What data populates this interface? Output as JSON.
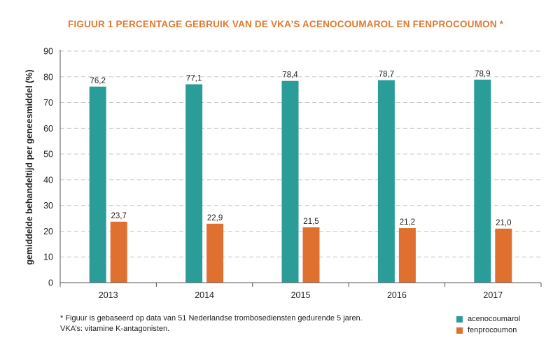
{
  "title": "FIGUUR 1  PERCENTAGE GEBRUIK VAN DE VKA’S ACENOCOUMAROL EN FENPROCOUMON *",
  "footnotes": [
    "* Figuur is gebaseerd op data van 51 Nederlandse trombosediensten gedurende 5 jaren.",
    "VKA’s: vitamine K-antagonisten."
  ],
  "chart_data": {
    "type": "bar",
    "title": "FIGUUR 1  PERCENTAGE GEBRUIK VAN DE VKA’S ACENOCOUMAROL EN FENPROCOUMON *",
    "xlabel": "",
    "ylabel": "gemiddelde behandeltijd per geneesmiddel (%)",
    "categories": [
      "2013",
      "2014",
      "2015",
      "2016",
      "2017"
    ],
    "ylim": [
      0,
      90
    ],
    "yticks": [
      0,
      10,
      20,
      30,
      40,
      50,
      60,
      70,
      80,
      90
    ],
    "grid": true,
    "legend": "bottom-right",
    "series": [
      {
        "name": "acenocoumarol",
        "color": "#2a9d99",
        "values": [
          76.2,
          77.1,
          78.4,
          78.7,
          78.9
        ],
        "labels": [
          "76,2",
          "77,1",
          "78,4",
          "78,7",
          "78,9"
        ]
      },
      {
        "name": "fenprocoumon",
        "color": "#e07030",
        "values": [
          23.7,
          22.9,
          21.5,
          21.2,
          21.0
        ],
        "labels": [
          "23,7",
          "22,9",
          "21,5",
          "21,2",
          "21,0"
        ]
      }
    ]
  }
}
